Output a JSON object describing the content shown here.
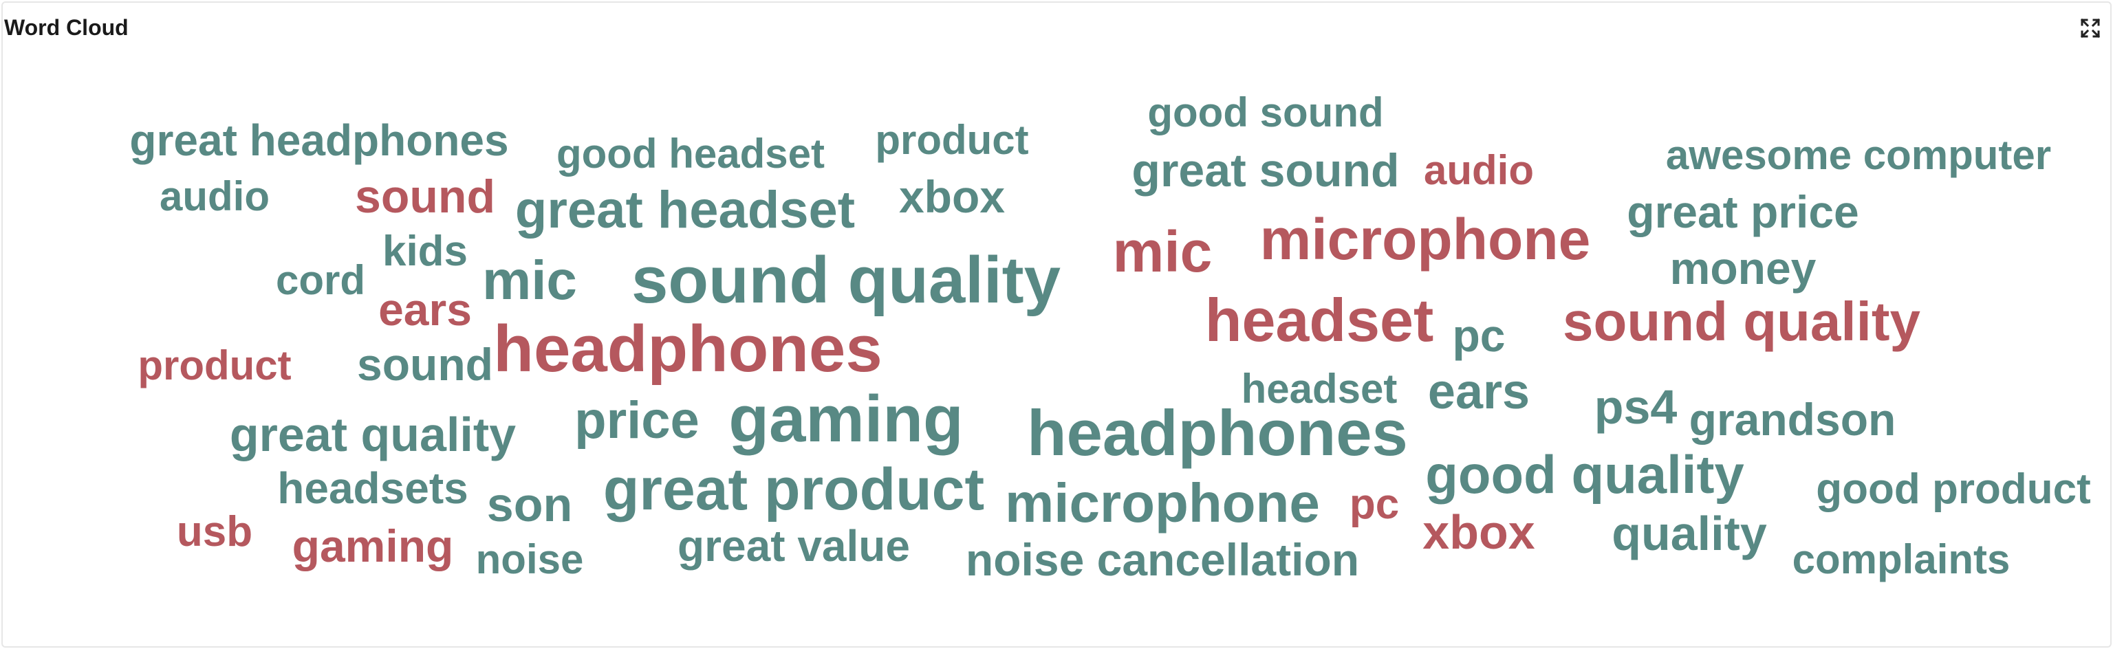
{
  "panel": {
    "title": "Word Cloud",
    "expand_icon": "expand-icon"
  },
  "colors": {
    "positive": "#588984",
    "negative": "#b5585e"
  },
  "words": [
    {
      "text": "great headphones",
      "sentiment": "positive"
    },
    {
      "text": "good headset",
      "sentiment": "positive"
    },
    {
      "text": "product",
      "sentiment": "positive"
    },
    {
      "text": "good sound",
      "sentiment": "positive"
    },
    {
      "text": "great sound",
      "sentiment": "positive"
    },
    {
      "text": "audio",
      "sentiment": "negative"
    },
    {
      "text": "awesome computer",
      "sentiment": "positive"
    },
    {
      "text": "audio",
      "sentiment": "positive"
    },
    {
      "text": "sound",
      "sentiment": "negative"
    },
    {
      "text": "great headset",
      "sentiment": "positive"
    },
    {
      "text": "xbox",
      "sentiment": "positive"
    },
    {
      "text": "great price",
      "sentiment": "positive"
    },
    {
      "text": "microphone",
      "sentiment": "negative"
    },
    {
      "text": "mic",
      "sentiment": "negative"
    },
    {
      "text": "kids",
      "sentiment": "positive"
    },
    {
      "text": "cord",
      "sentiment": "positive"
    },
    {
      "text": "mic",
      "sentiment": "positive"
    },
    {
      "text": "sound quality",
      "sentiment": "positive"
    },
    {
      "text": "money",
      "sentiment": "positive"
    },
    {
      "text": "ears",
      "sentiment": "negative"
    },
    {
      "text": "headset",
      "sentiment": "negative"
    },
    {
      "text": "pc",
      "sentiment": "positive"
    },
    {
      "text": "sound quality",
      "sentiment": "negative"
    },
    {
      "text": "product",
      "sentiment": "negative"
    },
    {
      "text": "sound",
      "sentiment": "positive"
    },
    {
      "text": "headphones",
      "sentiment": "negative"
    },
    {
      "text": "headset",
      "sentiment": "positive"
    },
    {
      "text": "ears",
      "sentiment": "positive"
    },
    {
      "text": "ps4",
      "sentiment": "positive"
    },
    {
      "text": "grandson",
      "sentiment": "positive"
    },
    {
      "text": "great quality",
      "sentiment": "positive"
    },
    {
      "text": "price",
      "sentiment": "positive"
    },
    {
      "text": "gaming",
      "sentiment": "positive"
    },
    {
      "text": "headphones",
      "sentiment": "positive"
    },
    {
      "text": "good quality",
      "sentiment": "positive"
    },
    {
      "text": "headsets",
      "sentiment": "positive"
    },
    {
      "text": "son",
      "sentiment": "positive"
    },
    {
      "text": "great product",
      "sentiment": "positive"
    },
    {
      "text": "microphone",
      "sentiment": "positive"
    },
    {
      "text": "pc",
      "sentiment": "negative"
    },
    {
      "text": "good product",
      "sentiment": "positive"
    },
    {
      "text": "usb",
      "sentiment": "negative"
    },
    {
      "text": "gaming",
      "sentiment": "negative"
    },
    {
      "text": "noise",
      "sentiment": "positive"
    },
    {
      "text": "great value",
      "sentiment": "positive"
    },
    {
      "text": "noise cancellation",
      "sentiment": "positive"
    },
    {
      "text": "xbox",
      "sentiment": "negative"
    },
    {
      "text": "quality",
      "sentiment": "positive"
    },
    {
      "text": "complaints",
      "sentiment": "positive"
    }
  ]
}
